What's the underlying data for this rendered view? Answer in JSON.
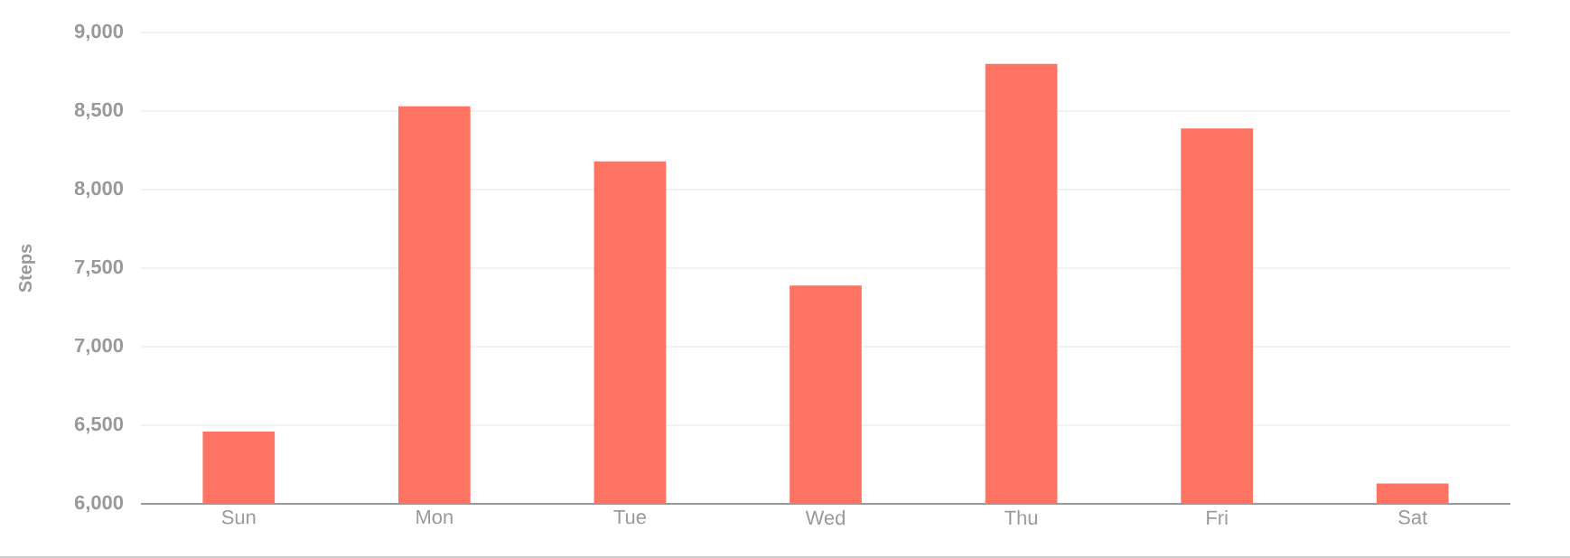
{
  "chart_data": {
    "type": "bar",
    "ylabel": "Steps",
    "categories": [
      "Sun",
      "Mon",
      "Tue",
      "Wed",
      "Thu",
      "Fri",
      "Sat"
    ],
    "values": [
      6460,
      8530,
      8180,
      7390,
      8800,
      8390,
      6130
    ],
    "color": "#fe7362",
    "ylim": [
      6000,
      9000
    ],
    "yticks": [
      {
        "value": 6000,
        "label": "6,000"
      },
      {
        "value": 6500,
        "label": "6,500"
      },
      {
        "value": 7000,
        "label": "7,000"
      },
      {
        "value": 7500,
        "label": "7,500"
      },
      {
        "value": 8000,
        "label": "8,000"
      },
      {
        "value": 8500,
        "label": "8,500"
      },
      {
        "value": 9000,
        "label": "9,000"
      }
    ],
    "grid": "y"
  }
}
